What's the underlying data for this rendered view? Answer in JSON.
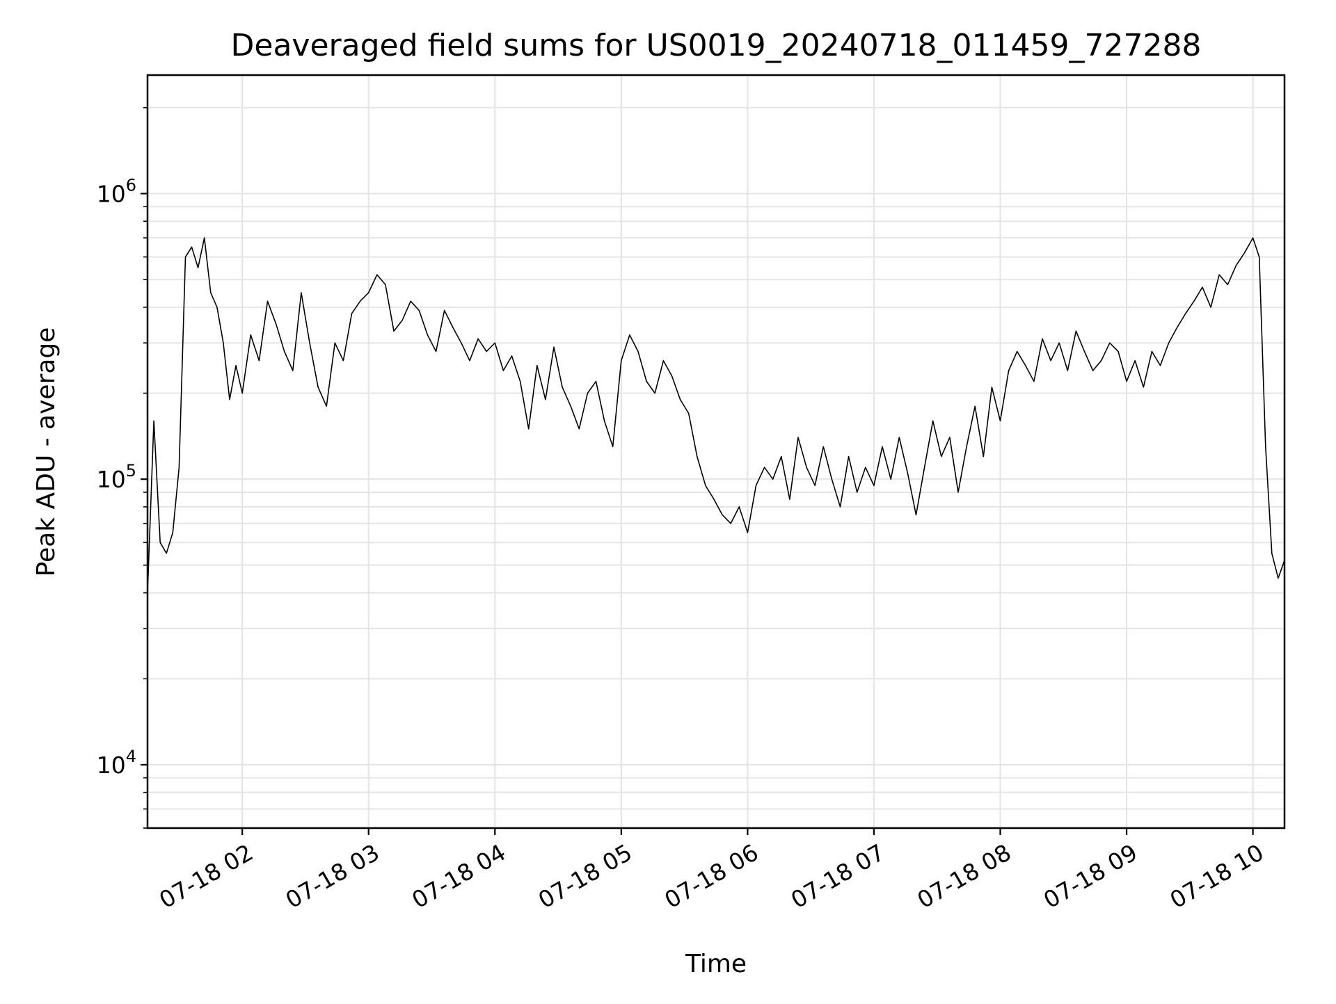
{
  "chart_data": {
    "type": "line",
    "title": "Deaveraged field sums for US0019_20240718_011459_727288",
    "xlabel": "Time",
    "ylabel": "Peak ADU - average",
    "yscale": "log",
    "grid": true,
    "line_color": "#000000",
    "grid_color": "#e5e5e5",
    "xlim": [
      "2024-07-18T01:15:00",
      "2024-07-18T10:15:00"
    ],
    "ylim": [
      6000,
      2600000
    ],
    "x_ticks": [
      {
        "value": "2024-07-18T02:00:00",
        "label": "07-18 02"
      },
      {
        "value": "2024-07-18T03:00:00",
        "label": "07-18 03"
      },
      {
        "value": "2024-07-18T04:00:00",
        "label": "07-18 04"
      },
      {
        "value": "2024-07-18T05:00:00",
        "label": "07-18 05"
      },
      {
        "value": "2024-07-18T06:00:00",
        "label": "07-18 06"
      },
      {
        "value": "2024-07-18T07:00:00",
        "label": "07-18 07"
      },
      {
        "value": "2024-07-18T08:00:00",
        "label": "07-18 08"
      },
      {
        "value": "2024-07-18T09:00:00",
        "label": "07-18 09"
      },
      {
        "value": "2024-07-18T10:00:00",
        "label": "07-18 10"
      }
    ],
    "y_ticks": [
      {
        "value": 10000,
        "base": "10",
        "exp": "4"
      },
      {
        "value": 100000,
        "base": "10",
        "exp": "5"
      },
      {
        "value": 1000000,
        "base": "10",
        "exp": "6"
      }
    ],
    "series": [
      {
        "x": [
          "2024-07-18T01:15:00",
          "2024-07-18T01:18:00",
          "2024-07-18T01:21:00",
          "2024-07-18T01:24:00",
          "2024-07-18T01:27:00",
          "2024-07-18T01:30:00",
          "2024-07-18T01:33:00",
          "2024-07-18T01:36:00",
          "2024-07-18T01:39:00",
          "2024-07-18T01:42:00",
          "2024-07-18T01:45:00",
          "2024-07-18T01:48:00",
          "2024-07-18T01:51:00",
          "2024-07-18T01:54:00",
          "2024-07-18T01:57:00",
          "2024-07-18T02:00:00",
          "2024-07-18T02:04:00",
          "2024-07-18T02:08:00",
          "2024-07-18T02:12:00",
          "2024-07-18T02:16:00",
          "2024-07-18T02:20:00",
          "2024-07-18T02:24:00",
          "2024-07-18T02:28:00",
          "2024-07-18T02:32:00",
          "2024-07-18T02:36:00",
          "2024-07-18T02:40:00",
          "2024-07-18T02:44:00",
          "2024-07-18T02:48:00",
          "2024-07-18T02:52:00",
          "2024-07-18T02:56:00",
          "2024-07-18T03:00:00",
          "2024-07-18T03:04:00",
          "2024-07-18T03:08:00",
          "2024-07-18T03:12:00",
          "2024-07-18T03:16:00",
          "2024-07-18T03:20:00",
          "2024-07-18T03:24:00",
          "2024-07-18T03:28:00",
          "2024-07-18T03:32:00",
          "2024-07-18T03:36:00",
          "2024-07-18T03:40:00",
          "2024-07-18T03:44:00",
          "2024-07-18T03:48:00",
          "2024-07-18T03:52:00",
          "2024-07-18T03:56:00",
          "2024-07-18T04:00:00",
          "2024-07-18T04:04:00",
          "2024-07-18T04:08:00",
          "2024-07-18T04:12:00",
          "2024-07-18T04:16:00",
          "2024-07-18T04:20:00",
          "2024-07-18T04:24:00",
          "2024-07-18T04:28:00",
          "2024-07-18T04:32:00",
          "2024-07-18T04:36:00",
          "2024-07-18T04:40:00",
          "2024-07-18T04:44:00",
          "2024-07-18T04:48:00",
          "2024-07-18T04:52:00",
          "2024-07-18T04:56:00",
          "2024-07-18T05:00:00",
          "2024-07-18T05:04:00",
          "2024-07-18T05:08:00",
          "2024-07-18T05:12:00",
          "2024-07-18T05:16:00",
          "2024-07-18T05:20:00",
          "2024-07-18T05:24:00",
          "2024-07-18T05:28:00",
          "2024-07-18T05:32:00",
          "2024-07-18T05:36:00",
          "2024-07-18T05:40:00",
          "2024-07-18T05:44:00",
          "2024-07-18T05:48:00",
          "2024-07-18T05:52:00",
          "2024-07-18T05:56:00",
          "2024-07-18T06:00:00",
          "2024-07-18T06:04:00",
          "2024-07-18T06:08:00",
          "2024-07-18T06:12:00",
          "2024-07-18T06:16:00",
          "2024-07-18T06:20:00",
          "2024-07-18T06:24:00",
          "2024-07-18T06:28:00",
          "2024-07-18T06:32:00",
          "2024-07-18T06:36:00",
          "2024-07-18T06:40:00",
          "2024-07-18T06:44:00",
          "2024-07-18T06:48:00",
          "2024-07-18T06:52:00",
          "2024-07-18T06:56:00",
          "2024-07-18T07:00:00",
          "2024-07-18T07:04:00",
          "2024-07-18T07:08:00",
          "2024-07-18T07:12:00",
          "2024-07-18T07:16:00",
          "2024-07-18T07:20:00",
          "2024-07-18T07:24:00",
          "2024-07-18T07:28:00",
          "2024-07-18T07:32:00",
          "2024-07-18T07:36:00",
          "2024-07-18T07:40:00",
          "2024-07-18T07:44:00",
          "2024-07-18T07:48:00",
          "2024-07-18T07:52:00",
          "2024-07-18T07:56:00",
          "2024-07-18T08:00:00",
          "2024-07-18T08:04:00",
          "2024-07-18T08:08:00",
          "2024-07-18T08:12:00",
          "2024-07-18T08:16:00",
          "2024-07-18T08:20:00",
          "2024-07-18T08:24:00",
          "2024-07-18T08:28:00",
          "2024-07-18T08:32:00",
          "2024-07-18T08:36:00",
          "2024-07-18T08:40:00",
          "2024-07-18T08:44:00",
          "2024-07-18T08:48:00",
          "2024-07-18T08:52:00",
          "2024-07-18T08:56:00",
          "2024-07-18T09:00:00",
          "2024-07-18T09:04:00",
          "2024-07-18T09:08:00",
          "2024-07-18T09:12:00",
          "2024-07-18T09:16:00",
          "2024-07-18T09:20:00",
          "2024-07-18T09:24:00",
          "2024-07-18T09:28:00",
          "2024-07-18T09:32:00",
          "2024-07-18T09:36:00",
          "2024-07-18T09:40:00",
          "2024-07-18T09:44:00",
          "2024-07-18T09:48:00",
          "2024-07-18T09:52:00",
          "2024-07-18T09:56:00",
          "2024-07-18T10:00:00",
          "2024-07-18T10:03:00",
          "2024-07-18T10:06:00",
          "2024-07-18T10:09:00",
          "2024-07-18T10:12:00",
          "2024-07-18T10:15:00"
        ],
        "y": [
          40000,
          160000,
          60000,
          55000,
          65000,
          110000,
          600000,
          650000,
          550000,
          700000,
          450000,
          400000,
          300000,
          190000,
          250000,
          200000,
          320000,
          260000,
          420000,
          350000,
          280000,
          240000,
          450000,
          300000,
          210000,
          180000,
          300000,
          260000,
          380000,
          420000,
          450000,
          520000,
          480000,
          330000,
          360000,
          420000,
          390000,
          320000,
          280000,
          390000,
          340000,
          300000,
          260000,
          310000,
          280000,
          300000,
          240000,
          270000,
          220000,
          150000,
          250000,
          190000,
          290000,
          210000,
          180000,
          150000,
          200000,
          220000,
          160000,
          130000,
          260000,
          320000,
          280000,
          220000,
          200000,
          260000,
          230000,
          190000,
          170000,
          120000,
          95000,
          85000,
          75000,
          70000,
          80000,
          65000,
          95000,
          110000,
          100000,
          120000,
          85000,
          140000,
          110000,
          95000,
          130000,
          100000,
          80000,
          120000,
          90000,
          110000,
          95000,
          130000,
          100000,
          140000,
          105000,
          75000,
          110000,
          160000,
          120000,
          140000,
          90000,
          130000,
          180000,
          120000,
          210000,
          160000,
          240000,
          280000,
          250000,
          220000,
          310000,
          260000,
          300000,
          240000,
          330000,
          280000,
          240000,
          260000,
          300000,
          280000,
          220000,
          260000,
          210000,
          280000,
          250000,
          300000,
          340000,
          380000,
          420000,
          470000,
          400000,
          520000,
          480000,
          560000,
          620000,
          700000,
          600000,
          130000,
          55000,
          45000,
          52000
        ]
      }
    ]
  }
}
